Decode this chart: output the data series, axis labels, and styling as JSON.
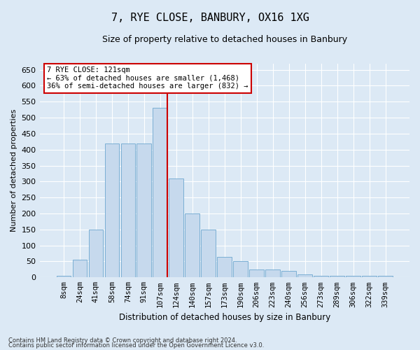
{
  "title1": "7, RYE CLOSE, BANBURY, OX16 1XG",
  "title2": "Size of property relative to detached houses in Banbury",
  "xlabel": "Distribution of detached houses by size in Banbury",
  "ylabel": "Number of detached properties",
  "categories": [
    "8sqm",
    "24sqm",
    "41sqm",
    "58sqm",
    "74sqm",
    "91sqm",
    "107sqm",
    "124sqm",
    "140sqm",
    "157sqm",
    "173sqm",
    "190sqm",
    "206sqm",
    "223sqm",
    "240sqm",
    "256sqm",
    "273sqm",
    "289sqm",
    "306sqm",
    "322sqm",
    "339sqm"
  ],
  "values": [
    5,
    55,
    150,
    420,
    420,
    420,
    530,
    310,
    200,
    150,
    65,
    50,
    25,
    25,
    20,
    10,
    5,
    5,
    5,
    5,
    5
  ],
  "bar_color": "#c6d9ed",
  "bar_edgecolor": "#7bafd4",
  "vline_color": "#cc0000",
  "vline_bar_index": 6,
  "ylim": [
    0,
    670
  ],
  "yticks": [
    0,
    50,
    100,
    150,
    200,
    250,
    300,
    350,
    400,
    450,
    500,
    550,
    600,
    650
  ],
  "annotation_text": "7 RYE CLOSE: 121sqm\n← 63% of detached houses are smaller (1,468)\n36% of semi-detached houses are larger (832) →",
  "annotation_box_color": "#ffffff",
  "annotation_box_edgecolor": "#cc0000",
  "footer1": "Contains HM Land Registry data © Crown copyright and database right 2024.",
  "footer2": "Contains public sector information licensed under the Open Government Licence v3.0.",
  "background_color": "#dce9f5",
  "grid_color": "#ffffff",
  "title1_fontsize": 11,
  "title2_fontsize": 9,
  "xlabel_fontsize": 8.5,
  "ylabel_fontsize": 8,
  "tick_fontsize": 8,
  "xtick_fontsize": 7.5,
  "annotation_fontsize": 7.5,
  "footer_fontsize": 6
}
